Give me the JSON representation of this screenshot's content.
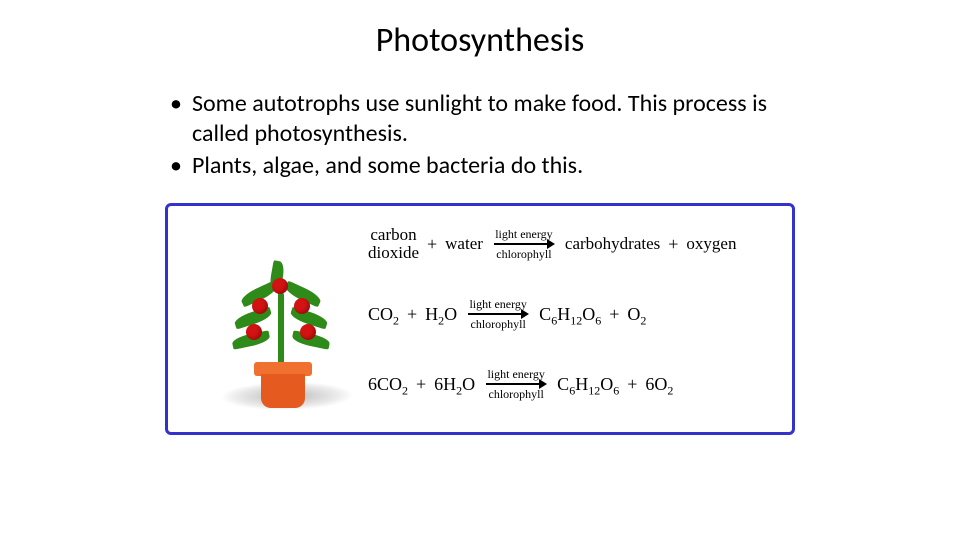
{
  "title": "Photosynthesis",
  "bullets": [
    "Some autotrophs use sunlight to make food. This process is called photosynthesis.",
    "Plants, algae, and some bacteria do this."
  ],
  "diagram": {
    "border_color": "#3333cc",
    "background": "#ffffff",
    "plant": {
      "pot_color": "#e55a1f",
      "pot_rim_color": "#f07030",
      "stem_color": "#2e8b1a",
      "leaf_color": "#2e8b1a",
      "fruit_color": "#d31212"
    },
    "arrow_label_top": "light energy",
    "arrow_label_bottom": "chlorophyll",
    "rows": [
      {
        "left_a": "carbon\ndioxide",
        "left_b": "water",
        "right_a": "carbohydrates",
        "right_b": "oxygen"
      },
      {
        "left_a_html": "CO<sub>2</sub>",
        "left_b_html": "H<sub>2</sub>O",
        "right_a_html": "C<sub>6</sub>H<sub>12</sub>O<sub>6</sub>",
        "right_b_html": "O<sub>2</sub>"
      },
      {
        "left_a_html": "6CO<sub>2</sub>",
        "left_b_html": "6H<sub>2</sub>O",
        "right_a_html": "C<sub>6</sub>H<sub>12</sub>O<sub>6</sub>",
        "right_b_html": "6O<sub>2</sub>"
      }
    ]
  },
  "colors": {
    "text": "#000000",
    "slide_bg": "#ffffff"
  }
}
